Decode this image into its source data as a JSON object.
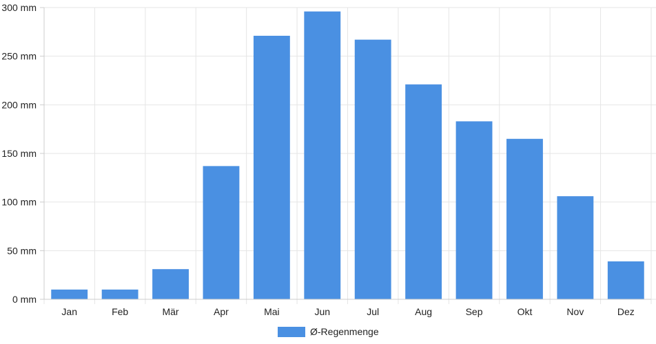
{
  "chart_data": {
    "type": "bar",
    "categories": [
      "Jan",
      "Feb",
      "Mär",
      "Apr",
      "Mai",
      "Jun",
      "Jul",
      "Aug",
      "Sep",
      "Okt",
      "Nov",
      "Dez"
    ],
    "series": [
      {
        "name": "Ø-Regenmenge",
        "values": [
          10,
          10,
          31,
          137,
          271,
          296,
          267,
          221,
          183,
          165,
          106,
          39
        ]
      }
    ],
    "ylim": [
      0,
      300
    ],
    "yticks": [
      0,
      50,
      100,
      150,
      200,
      250,
      300
    ],
    "ytick_labels": [
      "0 mm",
      "50 mm",
      "100 mm",
      "150 mm",
      "200 mm",
      "250 mm",
      "300 mm"
    ],
    "grid": true,
    "legend_position": "bottom",
    "colors": {
      "bar": "#4a90e2",
      "grid": "#e5e5e5",
      "axis": "#cccccc"
    }
  }
}
